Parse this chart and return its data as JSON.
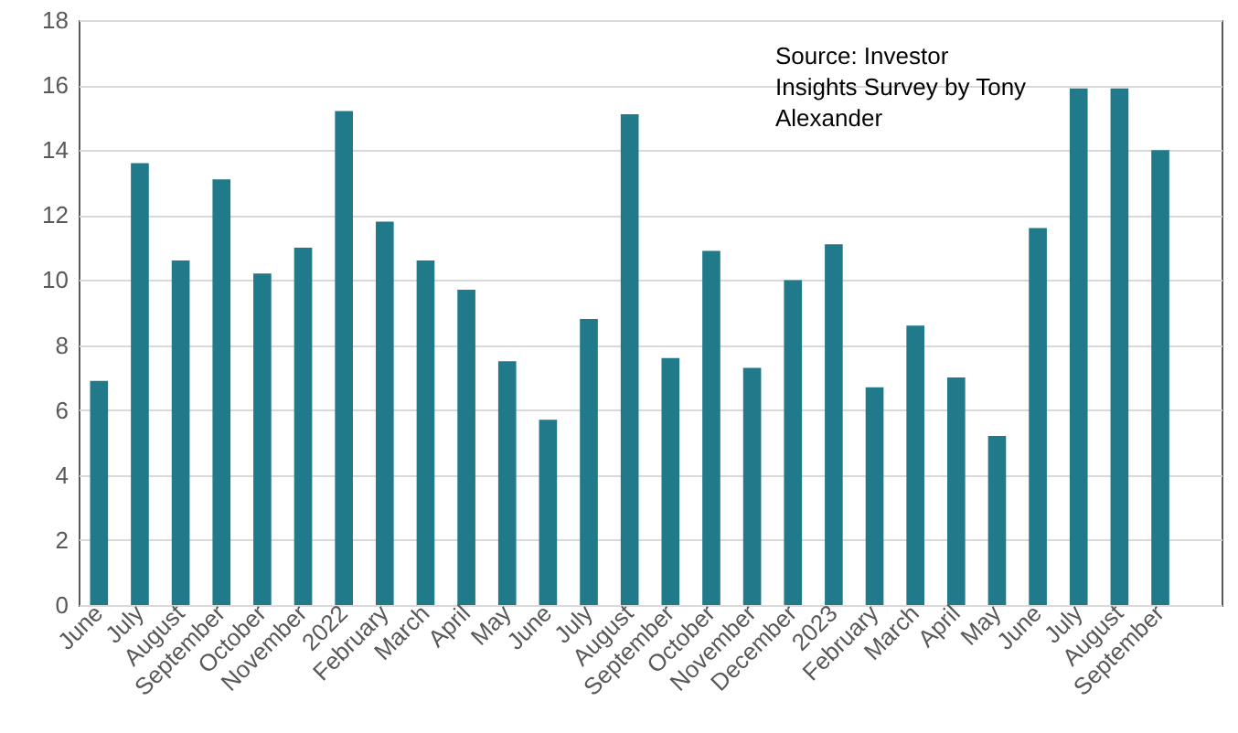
{
  "chart_data": {
    "type": "bar",
    "categories": [
      "June",
      "July",
      "August",
      "September",
      "October",
      "November",
      "2022",
      "February",
      "March",
      "April",
      "May",
      "June",
      "July",
      "August",
      "September",
      "October",
      "November",
      "December",
      "2023",
      "February",
      "March",
      "April",
      "May",
      "June",
      "July",
      "August",
      "September",
      null
    ],
    "values": [
      6.9,
      13.6,
      10.6,
      13.1,
      10.2,
      11.0,
      15.2,
      11.8,
      10.6,
      9.7,
      7.5,
      5.7,
      8.8,
      15.1,
      7.6,
      10.9,
      7.3,
      10.0,
      11.1,
      6.7,
      8.6,
      7.0,
      5.2,
      11.6,
      15.9,
      15.9,
      14.0,
      null
    ],
    "color": "#217a8a",
    "ylim": [
      0,
      18
    ],
    "yticks": [
      0,
      2,
      4,
      6,
      8,
      10,
      12,
      14,
      16,
      18
    ],
    "grid": "y",
    "annotations": [
      "Source: Investor Insights Survey by Tony Alexander"
    ]
  }
}
